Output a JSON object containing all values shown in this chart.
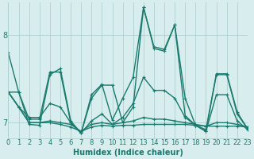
{
  "title": "",
  "xlabel": "Humidex (Indice chaleur)",
  "ylabel": "",
  "bg_color": "#d8eeee",
  "grid_color": "#b0d0d0",
  "line_color": "#1a7a6e",
  "xlim": [
    0,
    23
  ],
  "ylim": [
    6.82,
    8.38
  ],
  "yticks": [
    7,
    8
  ],
  "xticks": [
    0,
    1,
    2,
    3,
    4,
    5,
    6,
    7,
    8,
    9,
    10,
    11,
    12,
    13,
    14,
    15,
    16,
    17,
    18,
    19,
    20,
    21,
    22,
    23
  ],
  "series": [
    [
      7.8,
      7.35,
      6.98,
      6.97,
      7.55,
      7.62,
      7.02,
      6.88,
      7.32,
      7.44,
      7.03,
      7.28,
      7.52,
      8.32,
      7.87,
      7.84,
      8.12,
      7.08,
      6.97,
      6.92,
      7.56,
      7.56,
      7.12,
      6.93
    ],
    [
      7.35,
      7.35,
      7.04,
      7.04,
      7.58,
      7.58,
      7.0,
      6.88,
      7.28,
      7.43,
      7.43,
      7.0,
      7.18,
      8.32,
      7.85,
      7.82,
      8.12,
      7.28,
      6.97,
      6.9,
      7.55,
      7.55,
      7.1,
      6.93
    ],
    [
      7.35,
      7.18,
      7.06,
      7.06,
      7.22,
      7.18,
      7.0,
      6.88,
      7.02,
      7.1,
      6.98,
      7.06,
      7.22,
      7.52,
      7.37,
      7.37,
      7.28,
      7.06,
      6.97,
      6.9,
      7.32,
      7.32,
      7.02,
      6.92
    ],
    [
      7.35,
      7.18,
      7.0,
      7.0,
      7.02,
      7.0,
      6.98,
      6.9,
      6.98,
      7.0,
      6.98,
      7.0,
      7.02,
      7.06,
      7.04,
      7.04,
      7.02,
      7.0,
      6.98,
      6.96,
      7.0,
      7.0,
      6.98,
      6.95
    ],
    [
      7.35,
      7.18,
      7.0,
      7.0,
      7.0,
      6.98,
      6.95,
      6.9,
      6.95,
      6.97,
      6.96,
      6.97,
      6.97,
      6.98,
      6.98,
      6.98,
      6.98,
      6.98,
      6.97,
      6.96,
      6.96,
      6.96,
      6.96,
      6.95
    ]
  ],
  "marker": "+",
  "marker_size": 3,
  "linewidth": 1.0,
  "tick_fontsize": 6,
  "label_fontsize": 7,
  "figsize": [
    3.2,
    2.0
  ],
  "dpi": 100
}
